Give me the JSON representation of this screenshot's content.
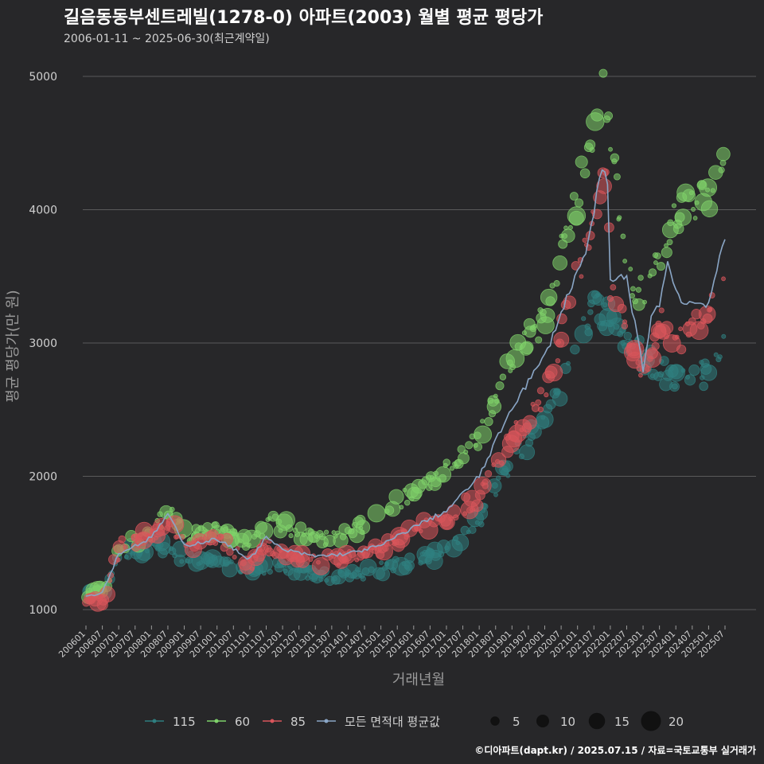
{
  "title": "길음동동부센트레빌(1278-0) 아파트(2003) 월별 평균 평당가",
  "subtitle": "2006-01-11 ~ 2025-06-30(최근계약일)",
  "footer": "©디아파트(dapt.kr) / 2025.07.15 / 자료=국토교통부 실거래가",
  "colors": {
    "background": "#272729",
    "grid": "#5a5a5a",
    "s115": "#2f7f80",
    "s60": "#7fd26a",
    "s85": "#d9555b",
    "avg": "#8aa6c6"
  },
  "chart_data": {
    "type": "scatter",
    "xlabel": "거래년월",
    "ylabel": "평균 평당가(만 원)",
    "ylim": [
      800,
      5150
    ],
    "yticks": [
      1000,
      2000,
      3000,
      4000,
      5000
    ],
    "xticks": [
      "200601",
      "200607",
      "200701",
      "200707",
      "200801",
      "200807",
      "200901",
      "200907",
      "201001",
      "201007",
      "201101",
      "201107",
      "201201",
      "201207",
      "201301",
      "201307",
      "201401",
      "201407",
      "201501",
      "201507",
      "201601",
      "201607",
      "201701",
      "201707",
      "201801",
      "201807",
      "201901",
      "201907",
      "202001",
      "202007",
      "202101",
      "202107",
      "202201",
      "202207",
      "202301",
      "202307",
      "202401",
      "202407",
      "202501",
      "202507"
    ],
    "grid": true,
    "legend_position": "bottom",
    "series": [
      {
        "name": "115",
        "keypoints": [
          [
            "200601",
            1120
          ],
          [
            "200604",
            1140
          ],
          [
            "200607",
            1150
          ],
          [
            "200610",
            1290
          ],
          [
            "200701",
            1420
          ],
          [
            "200801",
            1480
          ],
          [
            "200901",
            1400
          ],
          [
            "201001",
            1340
          ],
          [
            "201101",
            1300
          ],
          [
            "201201",
            1330
          ],
          [
            "201301",
            1260
          ],
          [
            "201401",
            1240
          ],
          [
            "201501",
            1310
          ],
          [
            "201601",
            1360
          ],
          [
            "201701",
            1450
          ],
          [
            "201801",
            1700
          ],
          [
            "201901",
            2150
          ],
          [
            "202001",
            2400
          ],
          [
            "202101",
            2980
          ],
          [
            "202107",
            3300
          ],
          [
            "202301",
            2900
          ],
          [
            "202401",
            2700
          ],
          [
            "202501",
            2780
          ],
          [
            "202506",
            2950
          ]
        ]
      },
      {
        "name": "60",
        "keypoints": [
          [
            "200601",
            1110
          ],
          [
            "200607",
            1130
          ],
          [
            "200701",
            1480
          ],
          [
            "200801",
            1560
          ],
          [
            "200807",
            1760
          ],
          [
            "200901",
            1560
          ],
          [
            "201001",
            1590
          ],
          [
            "201101",
            1480
          ],
          [
            "201107",
            1660
          ],
          [
            "201201",
            1640
          ],
          [
            "201301",
            1520
          ],
          [
            "201401",
            1570
          ],
          [
            "201501",
            1710
          ],
          [
            "201601",
            1900
          ],
          [
            "201701",
            2060
          ],
          [
            "201801",
            2320
          ],
          [
            "201901",
            2900
          ],
          [
            "202001",
            3200
          ],
          [
            "202101",
            4150
          ],
          [
            "202107",
            4700
          ],
          [
            "202110",
            4980
          ],
          [
            "202207",
            3480
          ],
          [
            "202301",
            3350
          ],
          [
            "202401",
            3950
          ],
          [
            "202501",
            4150
          ],
          [
            "202506",
            4450
          ]
        ]
      },
      {
        "name": "85",
        "keypoints": [
          [
            "200601",
            1090
          ],
          [
            "200607",
            1070
          ],
          [
            "200701",
            1480
          ],
          [
            "200801",
            1560
          ],
          [
            "200807",
            1650
          ],
          [
            "200901",
            1470
          ],
          [
            "201001",
            1520
          ],
          [
            "201101",
            1350
          ],
          [
            "201107",
            1490
          ],
          [
            "201201",
            1420
          ],
          [
            "201301",
            1370
          ],
          [
            "201401",
            1390
          ],
          [
            "201501",
            1460
          ],
          [
            "201601",
            1590
          ],
          [
            "201701",
            1690
          ],
          [
            "201801",
            1850
          ],
          [
            "201901",
            2300
          ],
          [
            "202001",
            2650
          ],
          [
            "202101",
            3550
          ],
          [
            "202107",
            3930
          ],
          [
            "202111",
            4200
          ],
          [
            "202201",
            3450
          ],
          [
            "202301",
            2750
          ],
          [
            "202307",
            3150
          ],
          [
            "202401",
            3000
          ],
          [
            "202501",
            3300
          ],
          [
            "202506",
            3470
          ]
        ]
      }
    ],
    "average_line": {
      "name": "모든 면적대 평균값",
      "keypoints": [
        [
          "200601",
          1100
        ],
        [
          "200607",
          1130
        ],
        [
          "200701",
          1420
        ],
        [
          "200801",
          1540
        ],
        [
          "200807",
          1720
        ],
        [
          "200901",
          1480
        ],
        [
          "201001",
          1530
        ],
        [
          "201101",
          1380
        ],
        [
          "201107",
          1540
        ],
        [
          "201201",
          1450
        ],
        [
          "201301",
          1400
        ],
        [
          "201401",
          1420
        ],
        [
          "201501",
          1480
        ],
        [
          "201601",
          1620
        ],
        [
          "201701",
          1740
        ],
        [
          "201801",
          2000
        ],
        [
          "201901",
          2520
        ],
        [
          "202001",
          2900
        ],
        [
          "202101",
          3550
        ],
        [
          "202104",
          3650
        ],
        [
          "202107",
          4000
        ],
        [
          "202110",
          4290
        ],
        [
          "202112",
          4200
        ],
        [
          "202201",
          3450
        ],
        [
          "202204",
          3490
        ],
        [
          "202207",
          3490
        ],
        [
          "202301",
          2800
        ],
        [
          "202304",
          3200
        ],
        [
          "202307",
          3300
        ],
        [
          "202310",
          3600
        ],
        [
          "202401",
          3400
        ],
        [
          "202404",
          3300
        ],
        [
          "202501",
          3300
        ],
        [
          "202504",
          3550
        ],
        [
          "202507",
          3760
        ]
      ]
    },
    "size_legend": {
      "values": [
        5,
        10,
        15,
        20
      ],
      "labels": [
        "5",
        "10",
        "15",
        "20"
      ]
    }
  }
}
